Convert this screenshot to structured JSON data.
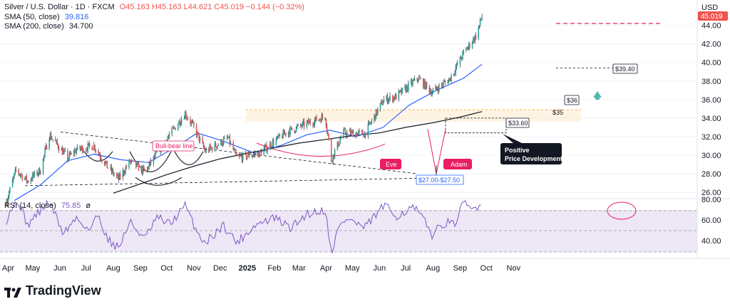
{
  "header": {
    "title": "Silver / U.S. Dollar · 1D · FXCM",
    "ohlc": "O45.163 H45.163 L44.621 C45.019 −0.144 (−0.32%)",
    "sma50_label": "SMA (50, close)",
    "sma50_value": "39.816",
    "sma200_label": "SMA (200, close)",
    "sma200_value": "34.700"
  },
  "rsi_header": {
    "label": "RSI (14, close)",
    "value": "75.85",
    "extra": "ø"
  },
  "price_axis": {
    "currency": "USD",
    "last_price_label": "45.019"
  },
  "brand": {
    "name": "TradingView"
  },
  "colors": {
    "up": "#26a69a",
    "down": "#ef5350",
    "sma50": "#2962ff",
    "sma200": "#131722",
    "rsi": "#7e57c2",
    "rsi_band": "#ede7f6",
    "annotation_red": "#e91e63",
    "callout_dark": "#131722"
  },
  "chart_data": {
    "type": "candlestick",
    "ylim": [
      25,
      46
    ],
    "y_ticks": [
      26,
      28,
      30,
      32,
      34,
      36,
      38,
      40,
      42,
      44
    ],
    "x_tick_labels": [
      "Apr",
      "May",
      "Jun",
      "Jul",
      "Aug",
      "Sep",
      "Oct",
      "Nov",
      "Dec",
      "2025",
      "Feb",
      "Mar",
      "Apr",
      "May",
      "Jun",
      "Jul",
      "Aug",
      "Sep",
      "Oct",
      "Nov"
    ],
    "close_anchors": [
      [
        "2024-04-01",
        25.0
      ],
      [
        "2024-04-12",
        28.4
      ],
      [
        "2024-04-25",
        27.2
      ],
      [
        "2024-05-10",
        28.4
      ],
      [
        "2024-05-20",
        32.2
      ],
      [
        "2024-06-10",
        29.7
      ],
      [
        "2024-06-20",
        30.6
      ],
      [
        "2024-07-10",
        31.0
      ],
      [
        "2024-07-25",
        28.8
      ],
      [
        "2024-08-07",
        27.4
      ],
      [
        "2024-08-20",
        29.3
      ],
      [
        "2024-09-06",
        28.2
      ],
      [
        "2024-09-30",
        31.6
      ],
      [
        "2024-10-22",
        34.5
      ],
      [
        "2024-11-01",
        33.0
      ],
      [
        "2024-11-14",
        30.4
      ],
      [
        "2024-12-10",
        31.8
      ],
      [
        "2024-12-20",
        29.7
      ],
      [
        "2025-01-15",
        30.2
      ],
      [
        "2025-02-15",
        32.5
      ],
      [
        "2025-03-31",
        34.2
      ],
      [
        "2025-04-07",
        29.5
      ],
      [
        "2025-04-20",
        32.4
      ],
      [
        "2025-05-15",
        32.3
      ],
      [
        "2025-06-06",
        36.0
      ],
      [
        "2025-06-20",
        36.3
      ],
      [
        "2025-07-15",
        38.3
      ],
      [
        "2025-07-31",
        36.8
      ],
      [
        "2025-08-20",
        38.2
      ],
      [
        "2025-09-05",
        41.0
      ],
      [
        "2025-09-20",
        43.0
      ],
      [
        "2025-09-26",
        45.0
      ]
    ],
    "series": [
      {
        "name": "SMA (50, close)",
        "points": [
          [
            "2024-04-10",
            25.1
          ],
          [
            "2024-05-10",
            26.8
          ],
          [
            "2024-06-10",
            29.4
          ],
          [
            "2024-07-10",
            30.1
          ],
          [
            "2024-08-10",
            29.5
          ],
          [
            "2024-09-10",
            29.2
          ],
          [
            "2024-10-10",
            30.8
          ],
          [
            "2024-11-05",
            32.4
          ],
          [
            "2024-12-05",
            31.5
          ],
          [
            "2025-01-10",
            30.2
          ],
          [
            "2025-02-10",
            31.1
          ],
          [
            "2025-03-10",
            32.2
          ],
          [
            "2025-04-05",
            32.7
          ],
          [
            "2025-05-05",
            32.0
          ],
          [
            "2025-06-05",
            33.0
          ],
          [
            "2025-07-05",
            35.4
          ],
          [
            "2025-08-05",
            37.0
          ],
          [
            "2025-09-05",
            38.3
          ],
          [
            "2025-09-26",
            39.8
          ]
        ]
      },
      {
        "name": "SMA (200, close)",
        "points": [
          [
            "2024-08-01",
            25.9
          ],
          [
            "2024-09-01",
            26.9
          ],
          [
            "2024-10-01",
            27.9
          ],
          [
            "2024-11-01",
            28.8
          ],
          [
            "2024-12-01",
            29.6
          ],
          [
            "2025-01-01",
            30.2
          ],
          [
            "2025-02-01",
            30.8
          ],
          [
            "2025-03-01",
            31.3
          ],
          [
            "2025-04-01",
            31.7
          ],
          [
            "2025-05-01",
            32.1
          ],
          [
            "2025-06-01",
            32.4
          ],
          [
            "2025-07-01",
            33.0
          ],
          [
            "2025-08-01",
            33.5
          ],
          [
            "2025-09-01",
            34.1
          ],
          [
            "2025-09-26",
            34.7
          ]
        ]
      }
    ],
    "rsi": {
      "ylim": [
        25,
        85
      ],
      "ticks": [
        40,
        60,
        80
      ],
      "anchors": [
        [
          "2024-04-01",
          60
        ],
        [
          "2024-04-05",
          70
        ],
        [
          "2024-04-15",
          78
        ],
        [
          "2024-04-25",
          55
        ],
        [
          "2024-05-05",
          65
        ],
        [
          "2024-05-20",
          78
        ],
        [
          "2024-06-05",
          47
        ],
        [
          "2024-06-20",
          62
        ],
        [
          "2024-07-05",
          50
        ],
        [
          "2024-07-15",
          66
        ],
        [
          "2024-07-25",
          42
        ],
        [
          "2024-08-07",
          33
        ],
        [
          "2024-08-20",
          58
        ],
        [
          "2024-09-06",
          42
        ],
        [
          "2024-09-20",
          62
        ],
        [
          "2024-10-05",
          56
        ],
        [
          "2024-10-22",
          74
        ],
        [
          "2024-11-05",
          48
        ],
        [
          "2024-11-14",
          38
        ],
        [
          "2024-12-05",
          55
        ],
        [
          "2024-12-20",
          38
        ],
        [
          "2025-01-10",
          55
        ],
        [
          "2025-02-01",
          62
        ],
        [
          "2025-02-20",
          52
        ],
        [
          "2025-03-10",
          66
        ],
        [
          "2025-03-31",
          70
        ],
        [
          "2025-04-07",
          28
        ],
        [
          "2025-04-15",
          52
        ],
        [
          "2025-04-25",
          62
        ],
        [
          "2025-05-15",
          52
        ],
        [
          "2025-06-06",
          74
        ],
        [
          "2025-06-20",
          64
        ],
        [
          "2025-07-10",
          72
        ],
        [
          "2025-07-20",
          62
        ],
        [
          "2025-07-31",
          46
        ],
        [
          "2025-08-15",
          58
        ],
        [
          "2025-08-25",
          55
        ],
        [
          "2025-09-05",
          76
        ],
        [
          "2025-09-15",
          70
        ],
        [
          "2025-09-26",
          76
        ]
      ]
    },
    "annotations": [
      {
        "kind": "label_red",
        "text": "Bull-bear line"
      },
      {
        "kind": "label_red_fill",
        "text": "Eve"
      },
      {
        "kind": "label_red_fill",
        "text": "Adam"
      },
      {
        "kind": "callout_dark",
        "text": [
          "Positive",
          "Price Development"
        ]
      },
      {
        "kind": "price_tag",
        "text": "$27.00-$27.50"
      },
      {
        "kind": "price_tag",
        "text": "$33.60"
      },
      {
        "kind": "price_tag",
        "text": "$36"
      },
      {
        "kind": "plain_text",
        "text": "$35"
      },
      {
        "kind": "price_tag",
        "text": "$39.40"
      }
    ]
  }
}
